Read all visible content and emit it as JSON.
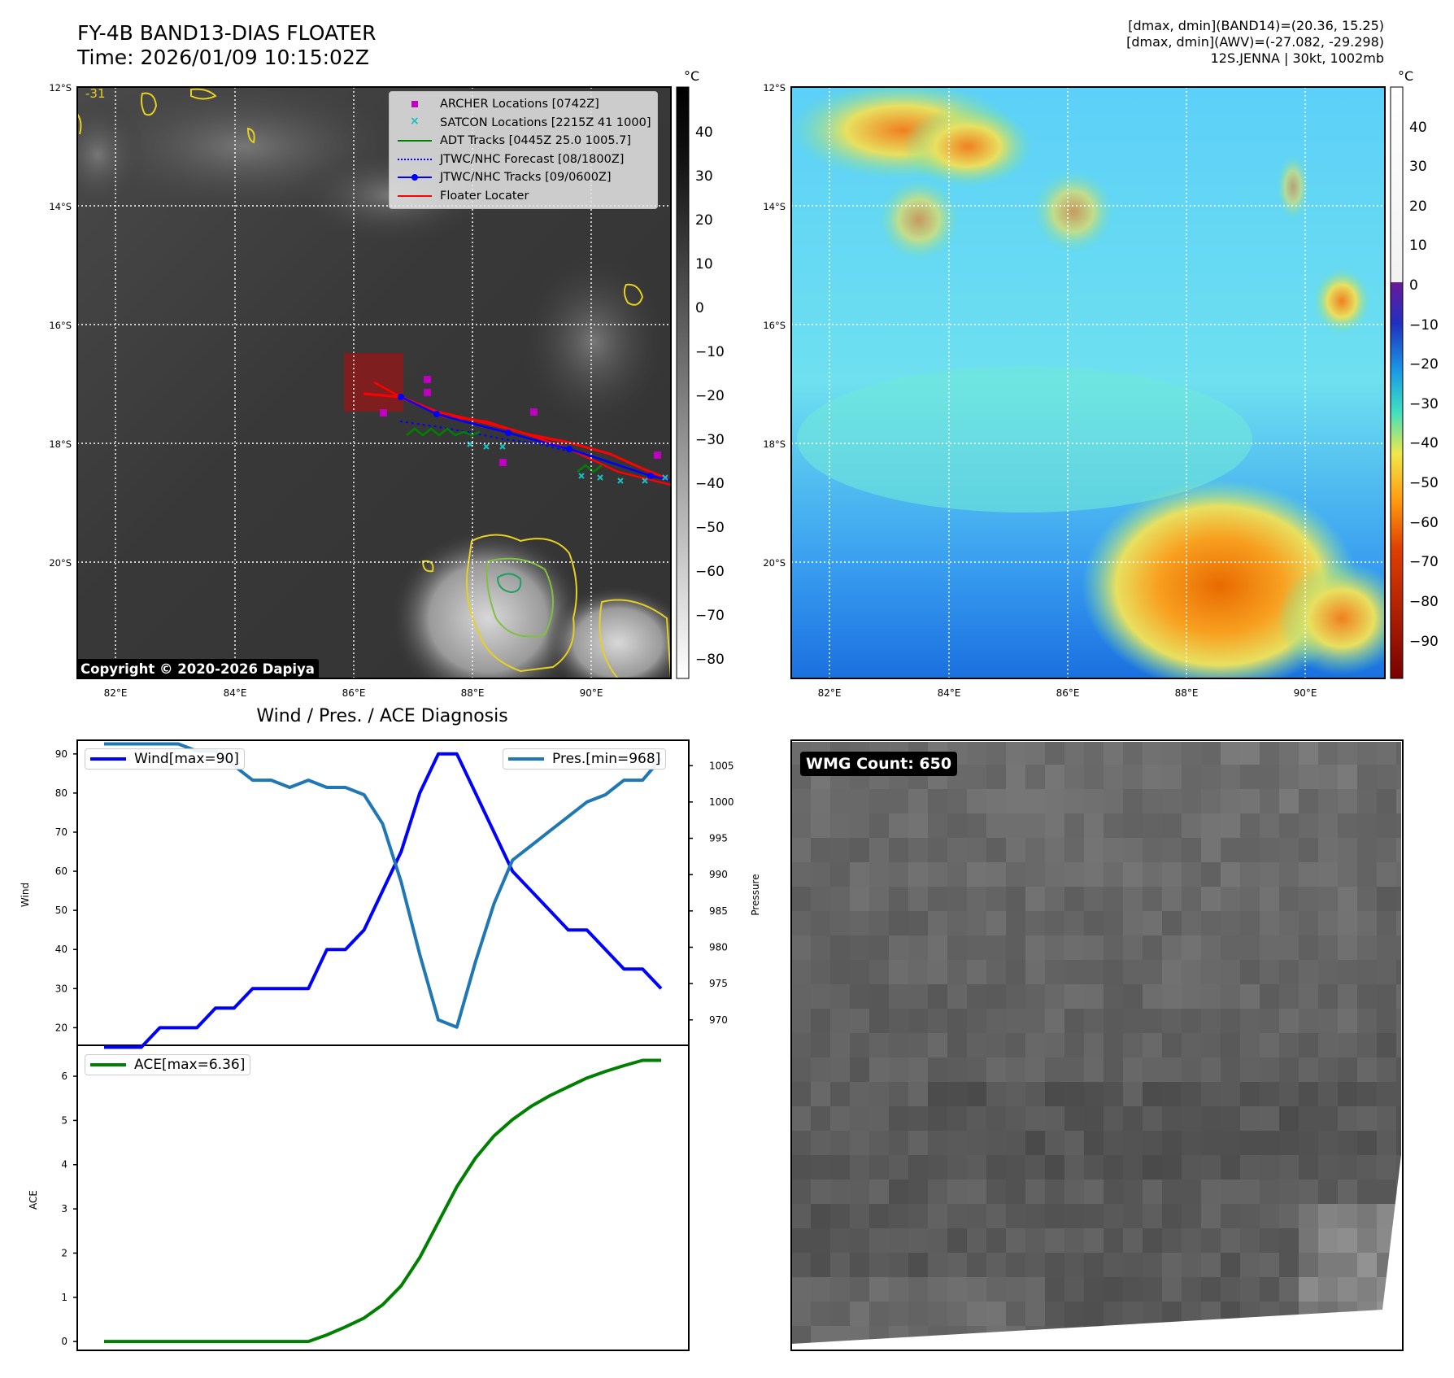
{
  "header": {
    "title_line1": "FY-4B BAND13-DIAS FLOATER",
    "title_line2": "Time: 2026/01/09 10:15:02Z",
    "right_line1": "[dmax, dmin](BAND14)=(20.36, 15.25)",
    "right_line2": "[dmax, dmin](AWV)=(-27.082, -29.298)",
    "right_line3": "12S.JENNA | 30kt, 1002mb"
  },
  "map": {
    "lat_labels": [
      "12°S",
      "14°S",
      "16°S",
      "18°S",
      "20°S"
    ],
    "lon_labels": [
      "82°E",
      "84°E",
      "86°E",
      "88°E",
      "90°E"
    ],
    "lat_range": [
      -22,
      -12
    ],
    "lon_range": [
      81.35,
      91.35
    ]
  },
  "ir_panel": {
    "copyright": "Copyright © 2020-2026 Dapiya",
    "colorbar_unit": "°C",
    "colorbar_ticks": [
      "40",
      "30",
      "20",
      "10",
      "0",
      "−10",
      "−20",
      "−30",
      "−40",
      "−50",
      "−60",
      "−70",
      "−80"
    ],
    "legend": [
      {
        "label": "ARCHER Locations [0742Z]",
        "color": "#c000c0",
        "icon": "square-marker-icon"
      },
      {
        "label": "SATCON Locations [2215Z 41 1000]",
        "color": "#17bfbf",
        "icon": "x-marker-icon"
      },
      {
        "label": "ADT Tracks [0445Z 25.0 1005.7]",
        "color": "#008000",
        "icon": "solid-line-icon"
      },
      {
        "label": "JTWC/NHC Forecast [08/1800Z]",
        "color": "#0000ff",
        "icon": "dotted-line-icon"
      },
      {
        "label": "JTWC/NHC Tracks [09/0600Z]",
        "color": "#0000ff",
        "icon": "line-dot-icon"
      },
      {
        "label": "Floater Locater",
        "color": "#ff0000",
        "icon": "solid-line-icon"
      }
    ],
    "contour_label": "-31"
  },
  "wv_panel": {
    "colorbar_unit": "°C",
    "colorbar_ticks": [
      "40",
      "30",
      "20",
      "10",
      "0",
      "−10",
      "−20",
      "−30",
      "−40",
      "−50",
      "−60",
      "−70",
      "−80",
      "−90"
    ]
  },
  "wmg_panel": {
    "label": "WMG Count: 650"
  },
  "chart_data": [
    {
      "type": "line",
      "title": "Wind / Pres. / ACE Diagnosis",
      "ylabel": "Wind",
      "ylim": [
        15.5,
        93.5
      ],
      "yticks": [
        "20",
        "30",
        "40",
        "50",
        "60",
        "70",
        "80",
        "90"
      ],
      "series": [
        {
          "name": "Wind[max=90]",
          "color": "#0000ff",
          "values": [
            15,
            15,
            15,
            20,
            20,
            20,
            25,
            25,
            30,
            30,
            30,
            30,
            40,
            40,
            45,
            55,
            65,
            80,
            90,
            90,
            80,
            70,
            60,
            55,
            50,
            45,
            45,
            40,
            35,
            35,
            30
          ]
        }
      ]
    },
    {
      "type": "line",
      "ylabel": "Pressure",
      "ylim": [
        966.5,
        1008.5
      ],
      "yticks": [
        "970",
        "975",
        "980",
        "985",
        "990",
        "995",
        "1000",
        "1005"
      ],
      "series": [
        {
          "name": "Pres.[min=968]",
          "color": "#1f77b4",
          "values": [
            1008,
            1008,
            1008,
            1008,
            1008,
            1007,
            1007,
            1005,
            1003,
            1003,
            1002,
            1003,
            1002,
            1002,
            1001,
            997,
            989,
            979,
            970,
            969,
            978,
            986,
            992,
            994,
            996,
            998,
            1000,
            1001,
            1003,
            1003,
            1006
          ]
        }
      ]
    },
    {
      "type": "line",
      "ylabel": "ACE",
      "ylim": [
        -0.2,
        6.7
      ],
      "yticks": [
        "0",
        "1",
        "2",
        "3",
        "4",
        "5",
        "6"
      ],
      "series": [
        {
          "name": "ACE[max=6.36]",
          "color": "#008000",
          "values": [
            0,
            0,
            0,
            0,
            0,
            0,
            0,
            0,
            0,
            0,
            0,
            0,
            0.15,
            0.33,
            0.53,
            0.83,
            1.26,
            1.9,
            2.7,
            3.5,
            4.15,
            4.65,
            5.02,
            5.32,
            5.56,
            5.76,
            5.96,
            6.11,
            6.24,
            6.36,
            6.36
          ]
        }
      ]
    }
  ]
}
